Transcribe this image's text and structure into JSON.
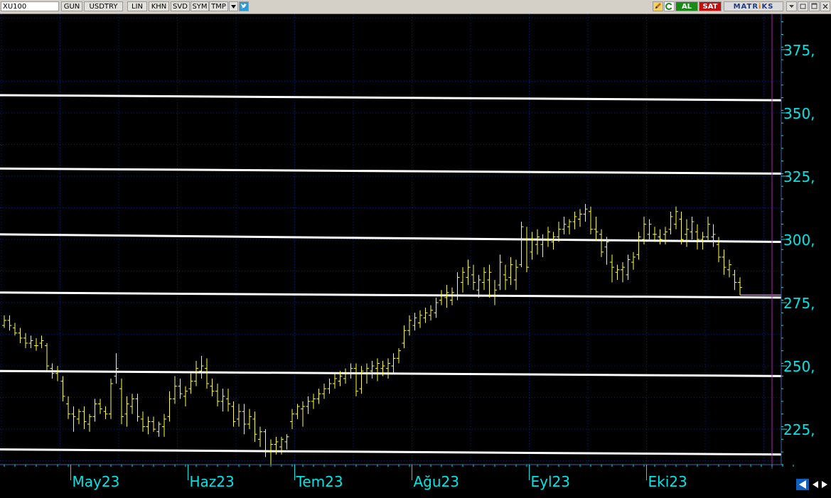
{
  "toolbar": {
    "symbol": "XU100",
    "buttons": [
      "GUN",
      "USDTRY",
      "LIN",
      "KHN",
      "SVD",
      "SYM",
      "TMP"
    ],
    "al_label": "AL",
    "sat_label": "SAT",
    "brand_prefix": "MATR",
    "brand_accent": "i",
    "brand_suffix": "KS",
    "icons": [
      "dropdown-arrow-icon",
      "twitter-bird-icon",
      "pencil-icon",
      "refresh-icon",
      "minimize-icon",
      "restore-icon",
      "close-icon",
      "scroll-left-icon",
      "scroll-right-icon"
    ]
  },
  "colors": {
    "background": "#000000",
    "grid": "#0a2a66",
    "candle": "#ffff40",
    "trendline": "#ffffff",
    "axis_text": "#00e5e5",
    "cursor_line": "#b020b0",
    "last_price_line": "#d080d0"
  },
  "chart_data": {
    "type": "bar",
    "symbol": "XU100",
    "currency": "USDTRY",
    "ylim": [
      211,
      389
    ],
    "y_ticks": [
      225,
      250,
      275,
      300,
      325,
      350,
      375
    ],
    "y_tick_labels": [
      "225,",
      "250,",
      "275,",
      "300,",
      "325,",
      "350,",
      "375,"
    ],
    "x_labels": [
      "May23",
      "Haz23",
      "Tem23",
      "Ağu23",
      "Eyl23",
      "Eki23"
    ],
    "x_label_index": [
      13,
      35,
      55,
      77,
      99,
      121
    ],
    "grid": true,
    "ohlc": [
      [
        266,
        270,
        265,
        268
      ],
      [
        268,
        270,
        264,
        266
      ],
      [
        265,
        267,
        262,
        263
      ],
      [
        263,
        265,
        259,
        261
      ],
      [
        261,
        263,
        257,
        259
      ],
      [
        259,
        262,
        257,
        260
      ],
      [
        258,
        261,
        256,
        258
      ],
      [
        259,
        262,
        257,
        260
      ],
      [
        258,
        259,
        248,
        250
      ],
      [
        249,
        251,
        245,
        247
      ],
      [
        247,
        250,
        244,
        248
      ],
      [
        244,
        246,
        236,
        238
      ],
      [
        235,
        238,
        229,
        231
      ],
      [
        231,
        234,
        224,
        230
      ],
      [
        229,
        233,
        227,
        232
      ],
      [
        232,
        234,
        225,
        228
      ],
      [
        227,
        231,
        224,
        230
      ],
      [
        230,
        237,
        228,
        235
      ],
      [
        235,
        237,
        231,
        233
      ],
      [
        232,
        234,
        229,
        231
      ],
      [
        231,
        245,
        229,
        243
      ],
      [
        246,
        255,
        243,
        249
      ],
      [
        241,
        245,
        227,
        230
      ],
      [
        231,
        238,
        226,
        235
      ],
      [
        234,
        239,
        231,
        237
      ],
      [
        237,
        239,
        228,
        230
      ],
      [
        229,
        232,
        224,
        226
      ],
      [
        226,
        230,
        223,
        228
      ],
      [
        228,
        230,
        224,
        225
      ],
      [
        224,
        228,
        222,
        227
      ],
      [
        226,
        231,
        222,
        229
      ],
      [
        230,
        240,
        228,
        237
      ],
      [
        237,
        246,
        235,
        242
      ],
      [
        242,
        245,
        237,
        239
      ],
      [
        238,
        242,
        234,
        240
      ],
      [
        241,
        247,
        239,
        244
      ],
      [
        244,
        252,
        242,
        249
      ],
      [
        248,
        254,
        245,
        250
      ],
      [
        249,
        253,
        241,
        243
      ],
      [
        242,
        245,
        238,
        240
      ],
      [
        240,
        243,
        234,
        236
      ],
      [
        236,
        241,
        232,
        238
      ],
      [
        237,
        241,
        232,
        235
      ],
      [
        234,
        236,
        226,
        228
      ],
      [
        229,
        235,
        226,
        232
      ],
      [
        232,
        235,
        223,
        227
      ],
      [
        227,
        233,
        225,
        230
      ],
      [
        229,
        232,
        220,
        223
      ],
      [
        221,
        226,
        218,
        224
      ],
      [
        224,
        225,
        214,
        216
      ],
      [
        216,
        221,
        211,
        219
      ],
      [
        219,
        222,
        215,
        220
      ],
      [
        218,
        222,
        215,
        221
      ],
      [
        220,
        223,
        217,
        222
      ],
      [
        228,
        233,
        225,
        231
      ],
      [
        231,
        235,
        229,
        234
      ],
      [
        233,
        236,
        226,
        234
      ],
      [
        234,
        238,
        231,
        236
      ],
      [
        236,
        239,
        233,
        237
      ],
      [
        237,
        241,
        235,
        239
      ],
      [
        239,
        243,
        237,
        241
      ],
      [
        241,
        245,
        239,
        243
      ],
      [
        243,
        247,
        241,
        245
      ],
      [
        244,
        248,
        242,
        246
      ],
      [
        245,
        249,
        243,
        247
      ],
      [
        247,
        251,
        245,
        249
      ],
      [
        249,
        251,
        238,
        240
      ],
      [
        241,
        250,
        239,
        248
      ],
      [
        247,
        251,
        243,
        249
      ],
      [
        248,
        252,
        245,
        250
      ],
      [
        249,
        253,
        244,
        251
      ],
      [
        249,
        252,
        246,
        250
      ],
      [
        249,
        253,
        245,
        251
      ],
      [
        250,
        255,
        247,
        253
      ],
      [
        253,
        257,
        251,
        256
      ],
      [
        259,
        266,
        257,
        264
      ],
      [
        264,
        270,
        262,
        268
      ],
      [
        266,
        271,
        264,
        269
      ],
      [
        267,
        272,
        265,
        270
      ],
      [
        269,
        273,
        267,
        271
      ],
      [
        270,
        274,
        268,
        272
      ],
      [
        271,
        277,
        269,
        275
      ],
      [
        276,
        280,
        274,
        278
      ],
      [
        277,
        282,
        273,
        279
      ],
      [
        276,
        281,
        274,
        279
      ],
      [
        278,
        287,
        276,
        285
      ],
      [
        283,
        289,
        279,
        287
      ],
      [
        285,
        292,
        282,
        289
      ],
      [
        286,
        290,
        280,
        283
      ],
      [
        280,
        286,
        277,
        284
      ],
      [
        283,
        289,
        280,
        287
      ],
      [
        284,
        290,
        277,
        287
      ],
      [
        278,
        284,
        274,
        280
      ],
      [
        282,
        294,
        280,
        291
      ],
      [
        286,
        290,
        280,
        284
      ],
      [
        285,
        293,
        282,
        290
      ],
      [
        284,
        292,
        280,
        289
      ],
      [
        290,
        307,
        289,
        305
      ],
      [
        300,
        305,
        287,
        289
      ],
      [
        295,
        303,
        292,
        300
      ],
      [
        298,
        304,
        294,
        301
      ],
      [
        298,
        302,
        293,
        300
      ],
      [
        300,
        305,
        297,
        303
      ],
      [
        299,
        303,
        296,
        301
      ],
      [
        301,
        307,
        299,
        304
      ],
      [
        304,
        309,
        302,
        306
      ],
      [
        305,
        308,
        302,
        307
      ],
      [
        307,
        311,
        304,
        309
      ],
      [
        308,
        312,
        305,
        310
      ],
      [
        310,
        314,
        307,
        312
      ],
      [
        311,
        313,
        302,
        304
      ],
      [
        304,
        309,
        300,
        303
      ],
      [
        302,
        304,
        293,
        295
      ],
      [
        297,
        301,
        290,
        299
      ],
      [
        291,
        294,
        283,
        289
      ],
      [
        287,
        290,
        284,
        288
      ],
      [
        288,
        291,
        283,
        289
      ],
      [
        286,
        294,
        284,
        292
      ],
      [
        291,
        295,
        288,
        293
      ],
      [
        294,
        303,
        292,
        301
      ],
      [
        300,
        309,
        298,
        306
      ],
      [
        302,
        308,
        300,
        306
      ],
      [
        302,
        305,
        299,
        302
      ],
      [
        301,
        304,
        298,
        300
      ],
      [
        302,
        305,
        298,
        303
      ],
      [
        304,
        311,
        302,
        309
      ],
      [
        306,
        313,
        304,
        311
      ],
      [
        308,
        311,
        298,
        300
      ],
      [
        302,
        308,
        297,
        304
      ],
      [
        303,
        309,
        300,
        307
      ],
      [
        303,
        306,
        296,
        300
      ],
      [
        300,
        303,
        296,
        301
      ],
      [
        301,
        309,
        299,
        306
      ],
      [
        301,
        306,
        297,
        302
      ],
      [
        298,
        301,
        291,
        293
      ],
      [
        293,
        296,
        286,
        289
      ],
      [
        288,
        292,
        285,
        290
      ],
      [
        286,
        288,
        280,
        283
      ],
      [
        283,
        285,
        278,
        281
      ]
    ],
    "trendlines": [
      {
        "y_start": 357,
        "y_end": 355
      },
      {
        "y_start": 328,
        "y_end": 326
      },
      {
        "y_start": 302,
        "y_end": 299
      },
      {
        "y_start": 279,
        "y_end": 277
      },
      {
        "y_start": 248,
        "y_end": 246
      },
      {
        "y_start": 217,
        "y_end": 215
      }
    ],
    "last_price": 278
  }
}
